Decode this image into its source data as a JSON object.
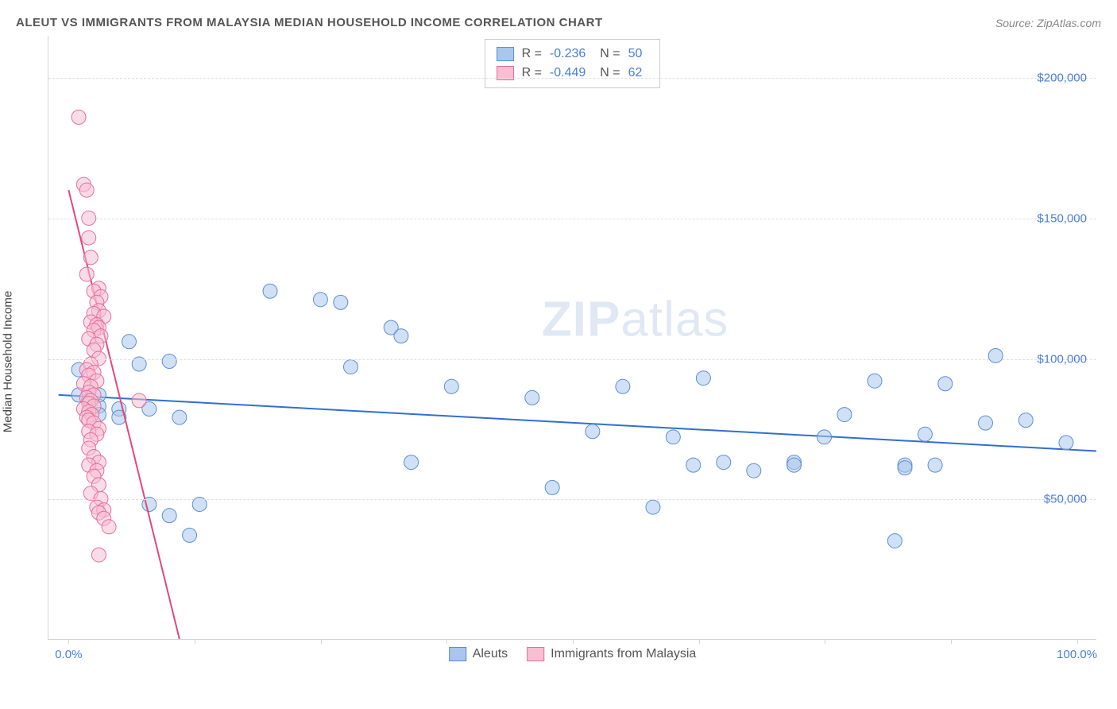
{
  "header": {
    "title": "ALEUT VS IMMIGRANTS FROM MALAYSIA MEDIAN HOUSEHOLD INCOME CORRELATION CHART",
    "source_prefix": "Source: ",
    "source": "ZipAtlas.com"
  },
  "watermark": {
    "bold": "ZIP",
    "rest": "atlas"
  },
  "axes": {
    "y_label": "Median Household Income",
    "y_ticks": [
      {
        "value": 50000,
        "label": "$50,000"
      },
      {
        "value": 100000,
        "label": "$100,000"
      },
      {
        "value": 150000,
        "label": "$150,000"
      },
      {
        "value": 200000,
        "label": "$200,000"
      }
    ],
    "y_min": 0,
    "y_max": 215000,
    "x_ticks": [
      {
        "value": 0,
        "label": "0.0%"
      },
      {
        "value": 100,
        "label": "100.0%"
      }
    ],
    "x_vticks": [
      0,
      12.5,
      25,
      37.5,
      50,
      62.5,
      75,
      87.5,
      100
    ],
    "x_min": -2,
    "x_max": 102
  },
  "colors": {
    "blue_fill": "#a9c6ec",
    "blue_stroke": "#5a8fd6",
    "blue_line": "#2f6fd0",
    "pink_fill": "#f6c0d2",
    "pink_stroke": "#e86d9a",
    "pink_line": "#e0497d",
    "grid": "#e0e0e0",
    "text_value": "#4a7fd8",
    "text_label": "#555555"
  },
  "stats": {
    "rows": [
      {
        "swatch": "blue",
        "R_label": "R =",
        "R": "-0.236",
        "N_label": "N =",
        "N": "50"
      },
      {
        "swatch": "pink",
        "R_label": "R =",
        "R": "-0.449",
        "N_label": "N =",
        "N": "62"
      }
    ]
  },
  "legend": {
    "series": [
      {
        "swatch": "blue",
        "label": "Aleuts"
      },
      {
        "swatch": "pink",
        "label": "Immigrants from Malaysia"
      }
    ]
  },
  "chart": {
    "type": "scatter",
    "marker_radius": 9,
    "marker_opacity": 0.55,
    "line_width": 2,
    "series": [
      {
        "name": "aleuts",
        "color_key": "blue",
        "trend": {
          "x1": -1,
          "y1": 87000,
          "x2": 102,
          "y2": 67000
        },
        "points": [
          [
            1,
            96000
          ],
          [
            1,
            87000
          ],
          [
            2,
            85000
          ],
          [
            3,
            83000
          ],
          [
            3,
            87000
          ],
          [
            3,
            80000
          ],
          [
            5,
            82000
          ],
          [
            5,
            79000
          ],
          [
            6,
            106000
          ],
          [
            7,
            98000
          ],
          [
            8,
            48000
          ],
          [
            8,
            82000
          ],
          [
            10,
            99000
          ],
          [
            10,
            44000
          ],
          [
            11,
            79000
          ],
          [
            12,
            37000
          ],
          [
            13,
            48000
          ],
          [
            20,
            124000
          ],
          [
            25,
            121000
          ],
          [
            27,
            120000
          ],
          [
            28,
            97000
          ],
          [
            32,
            111000
          ],
          [
            33,
            108000
          ],
          [
            34,
            63000
          ],
          [
            38,
            90000
          ],
          [
            46,
            86000
          ],
          [
            48,
            54000
          ],
          [
            52,
            74000
          ],
          [
            55,
            90000
          ],
          [
            58,
            47000
          ],
          [
            60,
            72000
          ],
          [
            62,
            62000
          ],
          [
            63,
            93000
          ],
          [
            65,
            63000
          ],
          [
            68,
            60000
          ],
          [
            72,
            63000
          ],
          [
            72,
            62000
          ],
          [
            75,
            72000
          ],
          [
            77,
            80000
          ],
          [
            80,
            92000
          ],
          [
            82,
            35000
          ],
          [
            83,
            62000
          ],
          [
            83,
            61000
          ],
          [
            85,
            73000
          ],
          [
            86,
            62000
          ],
          [
            87,
            91000
          ],
          [
            91,
            77000
          ],
          [
            92,
            101000
          ],
          [
            95,
            78000
          ],
          [
            99,
            70000
          ]
        ]
      },
      {
        "name": "malaysia",
        "color_key": "pink",
        "trend": {
          "x1": 0,
          "y1": 160000,
          "x2": 11,
          "y2": 0
        },
        "points": [
          [
            1,
            186000
          ],
          [
            1.5,
            162000
          ],
          [
            1.8,
            160000
          ],
          [
            2,
            150000
          ],
          [
            2,
            143000
          ],
          [
            2.2,
            136000
          ],
          [
            1.8,
            130000
          ],
          [
            3,
            125000
          ],
          [
            2.5,
            124000
          ],
          [
            3.2,
            122000
          ],
          [
            2.8,
            120000
          ],
          [
            3,
            117000
          ],
          [
            2.5,
            116000
          ],
          [
            3.5,
            115000
          ],
          [
            2.2,
            113000
          ],
          [
            2.8,
            112000
          ],
          [
            3,
            111000
          ],
          [
            2.5,
            110000
          ],
          [
            3.2,
            108000
          ],
          [
            2,
            107000
          ],
          [
            2.8,
            105000
          ],
          [
            2.5,
            103000
          ],
          [
            3,
            100000
          ],
          [
            2.2,
            98000
          ],
          [
            1.8,
            96000
          ],
          [
            2.5,
            95000
          ],
          [
            2,
            94000
          ],
          [
            2.8,
            92000
          ],
          [
            1.5,
            91000
          ],
          [
            2.2,
            90000
          ],
          [
            2,
            88000
          ],
          [
            2.5,
            87000
          ],
          [
            1.8,
            86000
          ],
          [
            2.2,
            85000
          ],
          [
            2,
            84000
          ],
          [
            2.5,
            83000
          ],
          [
            1.5,
            82000
          ],
          [
            2,
            81000
          ],
          [
            2.3,
            80000
          ],
          [
            1.8,
            79000
          ],
          [
            2,
            78000
          ],
          [
            2.5,
            77000
          ],
          [
            3,
            75000
          ],
          [
            2,
            74000
          ],
          [
            2.8,
            73000
          ],
          [
            2.2,
            71000
          ],
          [
            2,
            68000
          ],
          [
            2.5,
            65000
          ],
          [
            3,
            63000
          ],
          [
            2,
            62000
          ],
          [
            2.8,
            60000
          ],
          [
            2.5,
            58000
          ],
          [
            3,
            55000
          ],
          [
            2.2,
            52000
          ],
          [
            3.2,
            50000
          ],
          [
            2.8,
            47000
          ],
          [
            3.5,
            46000
          ],
          [
            3,
            45000
          ],
          [
            3.5,
            43000
          ],
          [
            4,
            40000
          ],
          [
            3,
            30000
          ],
          [
            7,
            85000
          ]
        ]
      }
    ]
  }
}
